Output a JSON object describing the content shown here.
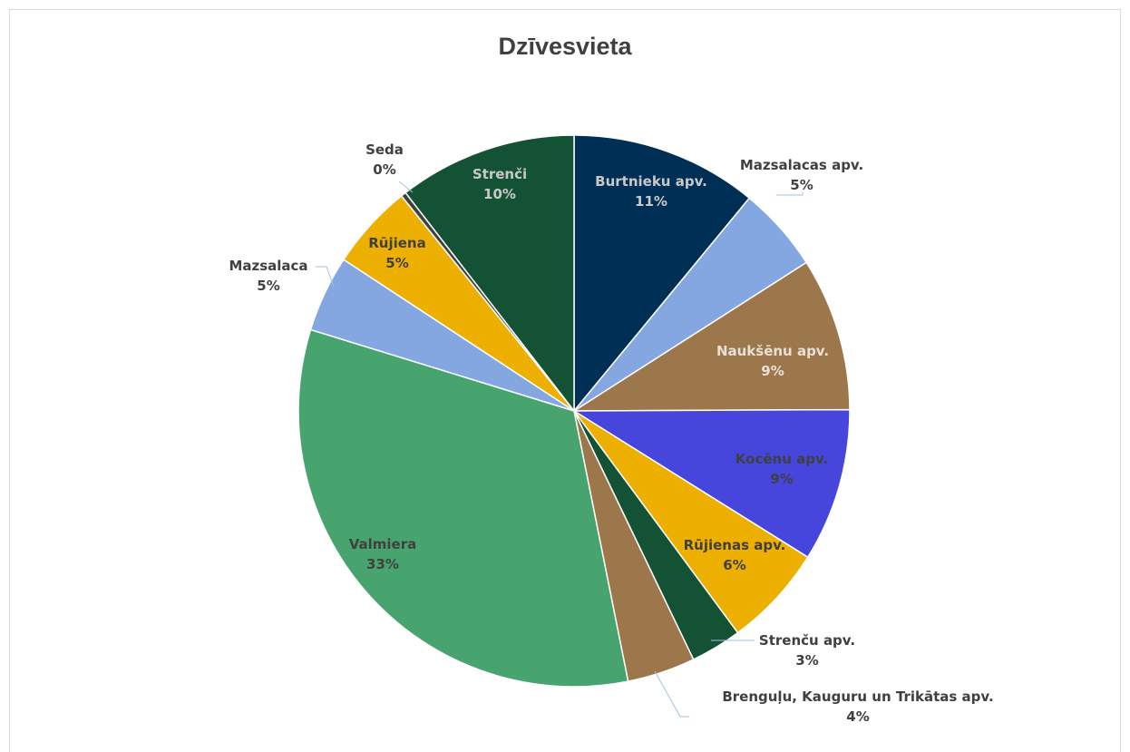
{
  "chart_data": {
    "type": "pie",
    "title": "Dzīvesvieta",
    "start_angle_deg": 0,
    "direction": "clockwise",
    "slices": [
      {
        "name": "Burtnieku apv.",
        "value": 11,
        "label": "11%",
        "color": "#002f56",
        "label_color": "#c9c9c9"
      },
      {
        "name": "Mazsalacas apv.",
        "value": 5,
        "label": "5%",
        "color": "#84a7e2",
        "label_color": "#404040"
      },
      {
        "name": "Naukšēnu apv.",
        "value": 9,
        "label": "9%",
        "color": "#9c774c",
        "label_color": "#e8e0d6"
      },
      {
        "name": "Kocēnu apv.",
        "value": 9,
        "label": "9%",
        "color": "#4646dc",
        "label_color": "#404040"
      },
      {
        "name": "Rūjienas apv.",
        "value": 6,
        "label": "6%",
        "color": "#edb000",
        "label_color": "#404040"
      },
      {
        "name": "Strenču apv.",
        "value": 3,
        "label": "3%",
        "color": "#145235",
        "label_color": "#404040"
      },
      {
        "name": "Brenguļu, Kauguru un Trikātas apv.",
        "value": 4,
        "label": "4%",
        "color": "#9c774c",
        "label_color": "#404040"
      },
      {
        "name": "Valmiera",
        "value": 33,
        "label": "33%",
        "color": "#48a46f",
        "label_color": "#404040"
      },
      {
        "name": "Mazsalaca",
        "value": 4.5,
        "label": "5%",
        "color": "#84a7e2",
        "label_color": "#404040"
      },
      {
        "name": "Rūjiena",
        "value": 5,
        "label": "5%",
        "color": "#edb000",
        "label_color": "#404040"
      },
      {
        "name": "Seda",
        "value": 0.3,
        "label": "0%",
        "color": "#404040",
        "label_color": "#404040"
      },
      {
        "name": "Strenči",
        "value": 10.5,
        "label": "10%",
        "color": "#145235",
        "label_color": "#c9c9c9"
      }
    ]
  }
}
